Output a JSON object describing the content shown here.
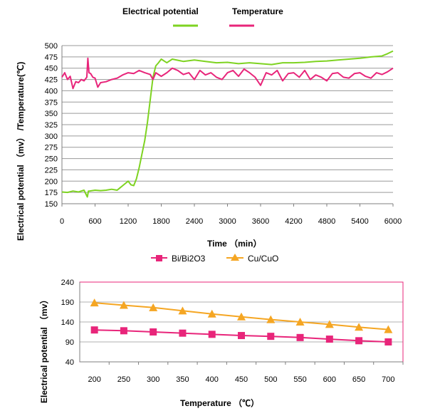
{
  "chart_data": [
    {
      "type": "line",
      "title": "",
      "xlabel": "Time （min）",
      "ylabel": "Electrical potential （mv） /Temperature(℃)",
      "xlim": [
        0,
        6000
      ],
      "ylim": [
        150,
        500
      ],
      "x_ticks": [
        "0",
        "600",
        "1200",
        "1800",
        "2400",
        "3000",
        "3600",
        "4200",
        "4800",
        "5400",
        "6000"
      ],
      "y_ticks": [
        "150",
        "175",
        "200",
        "225",
        "250",
        "275",
        "300",
        "325",
        "350",
        "375",
        "400",
        "425",
        "450",
        "475",
        "500"
      ],
      "grid": true,
      "legend_position": "top",
      "series": [
        {
          "name": "Electrical potential",
          "color": "#7ed321",
          "x": [
            0,
            100,
            200,
            300,
            400,
            460,
            480,
            500,
            600,
            700,
            800,
            900,
            1000,
            1050,
            1100,
            1150,
            1200,
            1250,
            1300,
            1350,
            1400,
            1450,
            1500,
            1550,
            1600,
            1650,
            1700,
            1750,
            1800,
            1900,
            2000,
            2200,
            2400,
            2600,
            2800,
            3000,
            3200,
            3400,
            3600,
            3800,
            4000,
            4200,
            4400,
            4600,
            4800,
            5000,
            5200,
            5400,
            5600,
            5800,
            5900,
            6000
          ],
          "y": [
            176,
            175,
            178,
            176,
            180,
            165,
            178,
            178,
            180,
            179,
            180,
            182,
            180,
            185,
            190,
            195,
            200,
            192,
            190,
            205,
            230,
            260,
            290,
            330,
            380,
            430,
            455,
            462,
            470,
            462,
            470,
            465,
            468,
            465,
            462,
            463,
            460,
            462,
            460,
            458,
            462,
            462,
            463,
            465,
            466,
            468,
            470,
            472,
            475,
            477,
            482,
            488
          ]
        },
        {
          "name": "Temperature",
          "color": "#e8257a",
          "x": [
            0,
            50,
            100,
            150,
            200,
            250,
            300,
            350,
            400,
            450,
            470,
            490,
            520,
            560,
            600,
            650,
            700,
            800,
            900,
            1000,
            1100,
            1200,
            1300,
            1400,
            1500,
            1600,
            1650,
            1700,
            1800,
            1900,
            2000,
            2100,
            2200,
            2300,
            2400,
            2500,
            2600,
            2700,
            2800,
            2900,
            3000,
            3100,
            3200,
            3300,
            3400,
            3500,
            3600,
            3700,
            3800,
            3900,
            4000,
            4100,
            4200,
            4300,
            4400,
            4500,
            4600,
            4700,
            4800,
            4900,
            5000,
            5100,
            5200,
            5300,
            5400,
            5500,
            5600,
            5700,
            5800,
            5900,
            6000
          ],
          "y": [
            430,
            440,
            425,
            432,
            405,
            420,
            418,
            425,
            422,
            430,
            472,
            440,
            438,
            430,
            428,
            408,
            418,
            420,
            425,
            428,
            435,
            440,
            438,
            445,
            440,
            436,
            425,
            440,
            432,
            440,
            450,
            445,
            436,
            440,
            425,
            445,
            435,
            440,
            430,
            425,
            440,
            445,
            432,
            448,
            440,
            430,
            412,
            440,
            435,
            445,
            422,
            438,
            440,
            430,
            445,
            425,
            435,
            430,
            422,
            438,
            440,
            430,
            428,
            438,
            440,
            432,
            428,
            440,
            436,
            442,
            450
          ]
        }
      ]
    },
    {
      "type": "line",
      "title": "",
      "xlabel": "Temperature （℃）",
      "ylabel": "Electrical potential （mv）",
      "categories": [
        "200",
        "250",
        "300",
        "350",
        "400",
        "450",
        "500",
        "550",
        "600",
        "650",
        "700"
      ],
      "ylim": [
        40,
        240
      ],
      "y_ticks": [
        "40",
        "90",
        "140",
        "190",
        "240"
      ],
      "grid": true,
      "legend_position": "top",
      "series": [
        {
          "name": "Bi/Bi2O3",
          "color": "#e8257a",
          "marker": "square",
          "values": [
            120,
            118,
            115,
            112,
            109,
            106,
            104,
            101,
            97,
            93,
            90
          ]
        },
        {
          "name": "Cu/CuO",
          "color": "#f5a623",
          "marker": "triangle",
          "values": [
            188,
            182,
            176,
            168,
            160,
            153,
            146,
            140,
            134,
            127,
            121
          ]
        }
      ]
    }
  ]
}
